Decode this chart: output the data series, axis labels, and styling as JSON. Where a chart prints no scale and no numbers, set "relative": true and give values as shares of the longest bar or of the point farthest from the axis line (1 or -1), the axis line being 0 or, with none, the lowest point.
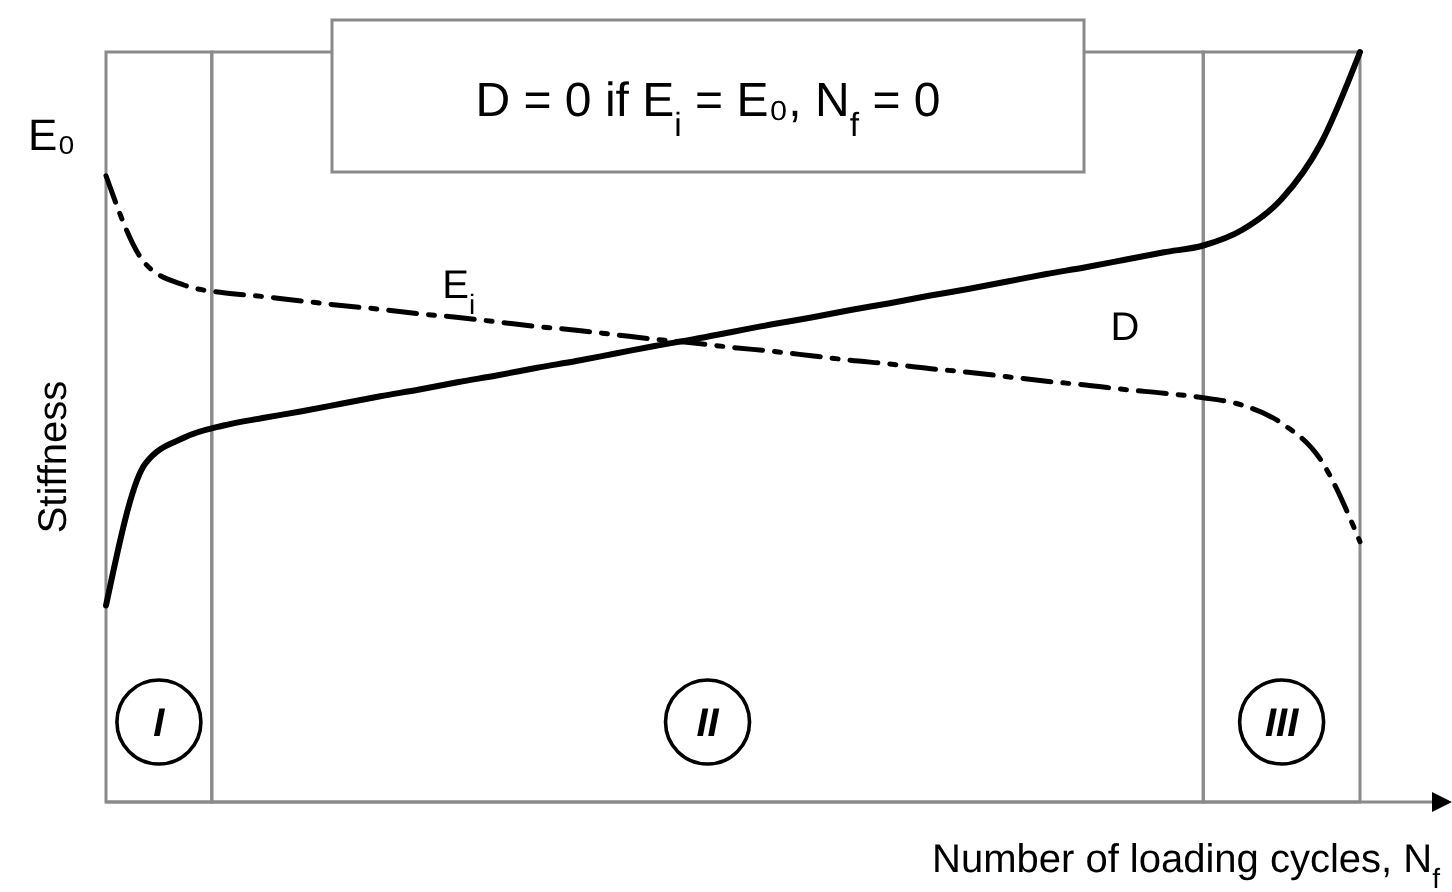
{
  "chart_data": {
    "type": "line",
    "relative": true,
    "xlabel": "Number of loading cycles, N$_{f}$",
    "ylabel": "Stiffness",
    "categories": [
      null,
      null,
      null,
      null,
      null,
      null,
      null,
      null,
      null,
      null,
      null,
      null,
      null,
      null,
      null,
      null,
      null,
      null,
      null,
      null,
      null,
      null,
      null,
      null,
      null,
      null,
      null,
      null,
      null,
      null,
      null,
      null,
      null
    ],
    "series": [
      {
        "name": "D",
        "color": "#000000",
        "line_style": "solid",
        "values": [
          0.262,
          0.451,
          0.486,
          0.502,
          0.512,
          0.521,
          0.531,
          0.541,
          0.55,
          0.56,
          0.569,
          0.579,
          0.588,
          0.598,
          0.608,
          0.617,
          0.627,
          0.637,
          0.646,
          0.656,
          0.665,
          0.675,
          0.684,
          0.694,
          0.704,
          0.713,
          0.723,
          0.733,
          0.742,
          0.763,
          0.804,
          0.878,
          1.0
        ]
      },
      {
        "name": "E$_{i}$",
        "color": "#000000",
        "line_style": "dashed",
        "values": [
          0.835,
          0.718,
          0.689,
          0.679,
          0.674,
          0.668,
          0.662,
          0.657,
          0.651,
          0.646,
          0.64,
          0.634,
          0.629,
          0.623,
          0.617,
          0.612,
          0.606,
          0.601,
          0.595,
          0.589,
          0.584,
          0.578,
          0.573,
          0.567,
          0.561,
          0.556,
          0.55,
          0.545,
          0.539,
          0.529,
          0.505,
          0.456,
          0.347
        ]
      }
    ],
    "annotations": [
      "D = 0  if E$_{i}$ = E₀, N$_{f}$ = 0",
      "E₀",
      "I",
      "II",
      "III"
    ],
    "marker": "none"
  }
}
